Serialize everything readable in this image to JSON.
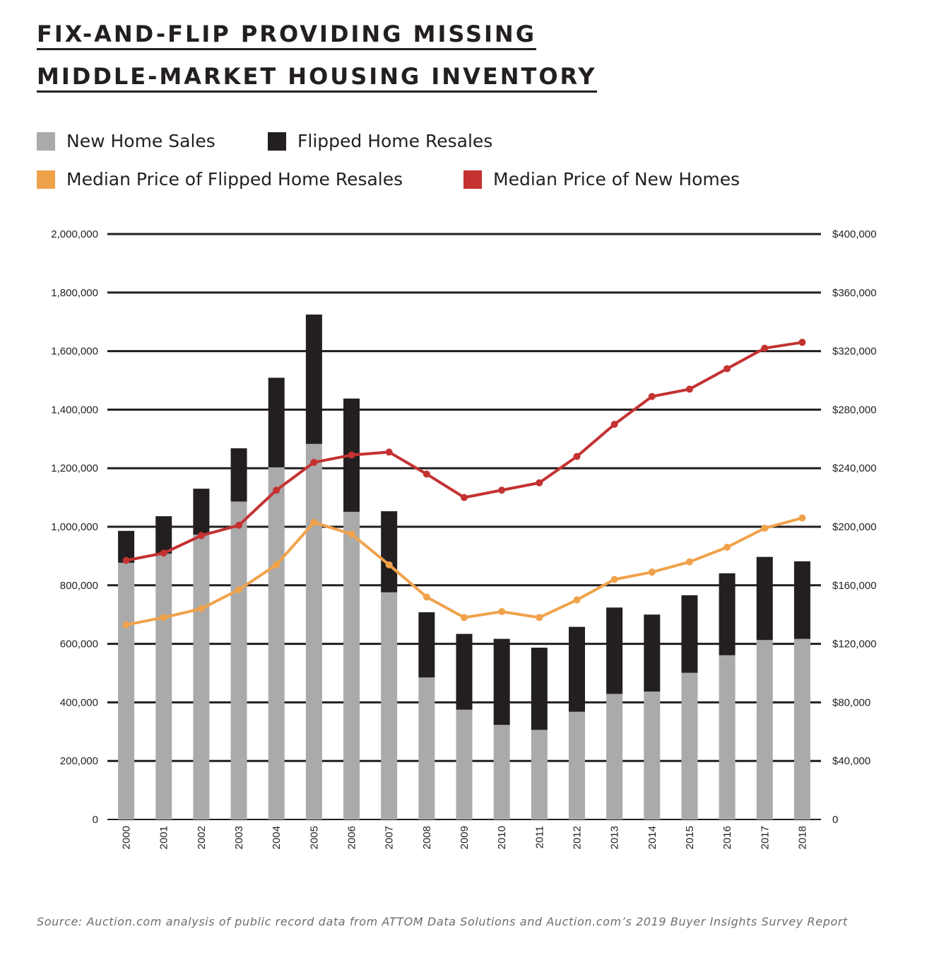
{
  "title_line1": "FIX-AND-FLIP PROVIDING MISSING",
  "title_line2": "MIDDLE-MARKET HOUSING INVENTORY",
  "source": "Source: Auction.com analysis of public record data from ATTOM Data Solutions and Auction.com’s 2019 Buyer Insights Survey Report",
  "legend": [
    {
      "label": "New Home Sales",
      "color": "#aaaaaa"
    },
    {
      "label": "Flipped Home Resales",
      "color": "#231f20"
    },
    {
      "label": "Median Price of Flipped Home Resales",
      "color": "#f0a24a"
    },
    {
      "label": "Median Price of New Homes",
      "color": "#c43232"
    }
  ],
  "chart_data": {
    "type": "bar",
    "stacked": true,
    "categories": [
      "2000",
      "2001",
      "2002",
      "2003",
      "2004",
      "2005",
      "2006",
      "2007",
      "2008",
      "2009",
      "2010",
      "2011",
      "2012",
      "2013",
      "2014",
      "2015",
      "2016",
      "2017",
      "2018"
    ],
    "y_left": {
      "ylim": [
        0,
        2000000
      ],
      "ticks": [
        0,
        200000,
        400000,
        600000,
        800000,
        1000000,
        1200000,
        1400000,
        1600000,
        1800000,
        2000000
      ],
      "tick_labels": [
        "0",
        "200,000",
        "400,000",
        "600,000",
        "800,000",
        "1,000,000",
        "1,200,000",
        "1,400,000",
        "1,600,000",
        "1,800,000",
        "2,000,000"
      ]
    },
    "y_right": {
      "ylim": [
        0,
        400000
      ],
      "ticks": [
        0,
        40000,
        80000,
        120000,
        160000,
        200000,
        240000,
        280000,
        320000,
        360000,
        400000
      ],
      "tick_labels": [
        "0",
        "$40,000",
        "$80,000",
        "$120,000",
        "$160,000",
        "$200,000",
        "$240,000",
        "$280,000",
        "$320,000",
        "$360,000",
        "$400,000"
      ]
    },
    "grid": true,
    "series": [
      {
        "name": "New Home Sales",
        "type": "bar",
        "axis": "left",
        "color": "#aaaaaa",
        "values": [
          877000,
          908000,
          973000,
          1086000,
          1203000,
          1283000,
          1051000,
          776000,
          485000,
          375000,
          323000,
          306000,
          368000,
          429000,
          437000,
          501000,
          561000,
          613000,
          617000
        ]
      },
      {
        "name": "Flipped Home Resales",
        "type": "bar",
        "axis": "left",
        "color": "#231f20",
        "values": [
          109000,
          128000,
          157000,
          182000,
          306000,
          442000,
          387000,
          277000,
          223000,
          259000,
          294000,
          281000,
          290000,
          295000,
          263000,
          265000,
          280000,
          284000,
          265000
        ]
      },
      {
        "name": "Median Price of Flipped Home Resales",
        "type": "line",
        "axis": "right",
        "color": "#f0a24a",
        "values": [
          133000,
          138000,
          144000,
          157000,
          174000,
          203000,
          195000,
          174000,
          152000,
          138000,
          142000,
          138000,
          150000,
          164000,
          169000,
          176000,
          186000,
          199000,
          206000
        ]
      },
      {
        "name": "Median Price of New Homes",
        "type": "line",
        "axis": "right",
        "color": "#c43232",
        "values": [
          177000,
          182000,
          194000,
          201000,
          225000,
          244000,
          249000,
          251000,
          236000,
          220000,
          225000,
          230000,
          248000,
          270000,
          289000,
          294000,
          308000,
          322000,
          326000
        ]
      }
    ]
  }
}
